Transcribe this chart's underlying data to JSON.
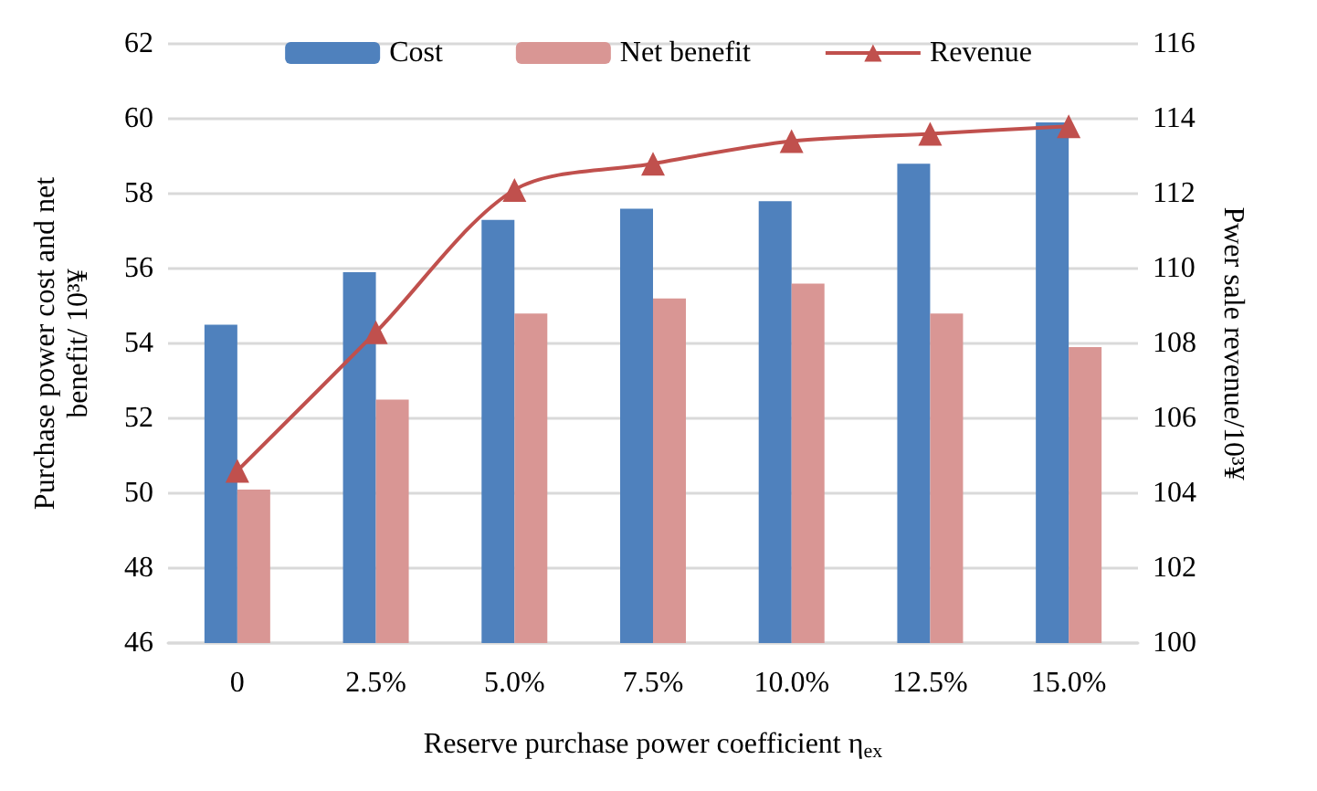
{
  "chart_data": {
    "type": "bar",
    "categories": [
      "0",
      "2.5%",
      "5.0%",
      "7.5%",
      "10.0%",
      "12.5%",
      "15.0%"
    ],
    "xlabel": "Reserve purchase power coefficient η$_{ex}$",
    "ylabel": "Purchase power cost and net\nbenefit/ 10³¥",
    "y2label": "Pwer sale revenue/10³¥",
    "series": [
      {
        "name": "Cost",
        "color": "#4f81bd",
        "values": [
          54.5,
          55.9,
          57.3,
          57.6,
          57.8,
          58.8,
          59.9
        ]
      },
      {
        "name": "Net benefit",
        "color": "#d99694",
        "values": [
          50.1,
          52.5,
          54.8,
          55.2,
          55.6,
          54.8,
          53.9
        ]
      },
      {
        "name": "Revenue",
        "type": "line",
        "axis": "y2",
        "color": "#c0504d",
        "marker": "triangle",
        "values": [
          104.6,
          108.3,
          112.1,
          112.8,
          113.4,
          113.6,
          113.8
        ]
      }
    ],
    "ylim": [
      46,
      62
    ],
    "yticks": [
      46,
      48,
      50,
      52,
      54,
      56,
      58,
      60,
      62
    ],
    "y2lim": [
      100,
      116
    ],
    "y2ticks": [
      100,
      102,
      104,
      106,
      108,
      110,
      112,
      114,
      116
    ],
    "grid": "y",
    "legend": "top"
  }
}
